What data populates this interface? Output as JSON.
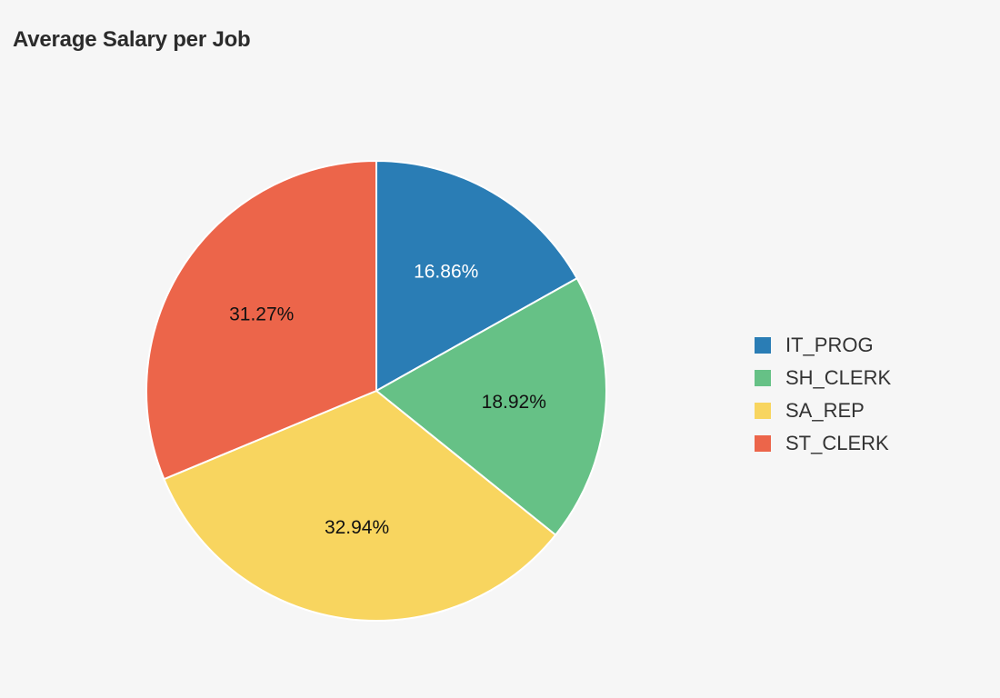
{
  "chart_data": {
    "type": "pie",
    "title": "Average Salary per Job",
    "slices": [
      {
        "label": "IT_PROG",
        "value": 16.86,
        "display": "16.86%",
        "color": "#2a7db5",
        "label_color": "#ffffff"
      },
      {
        "label": "SH_CLERK",
        "value": 18.92,
        "display": "18.92%",
        "color": "#66c186",
        "label_color": "#111111"
      },
      {
        "label": "SA_REP",
        "value": 32.94,
        "display": "32.94%",
        "color": "#f8d55f",
        "label_color": "#111111"
      },
      {
        "label": "ST_CLERK",
        "value": 31.27,
        "display": "31.27%",
        "color": "#ec654a",
        "label_color": "#111111"
      }
    ],
    "legend_position": "right"
  }
}
